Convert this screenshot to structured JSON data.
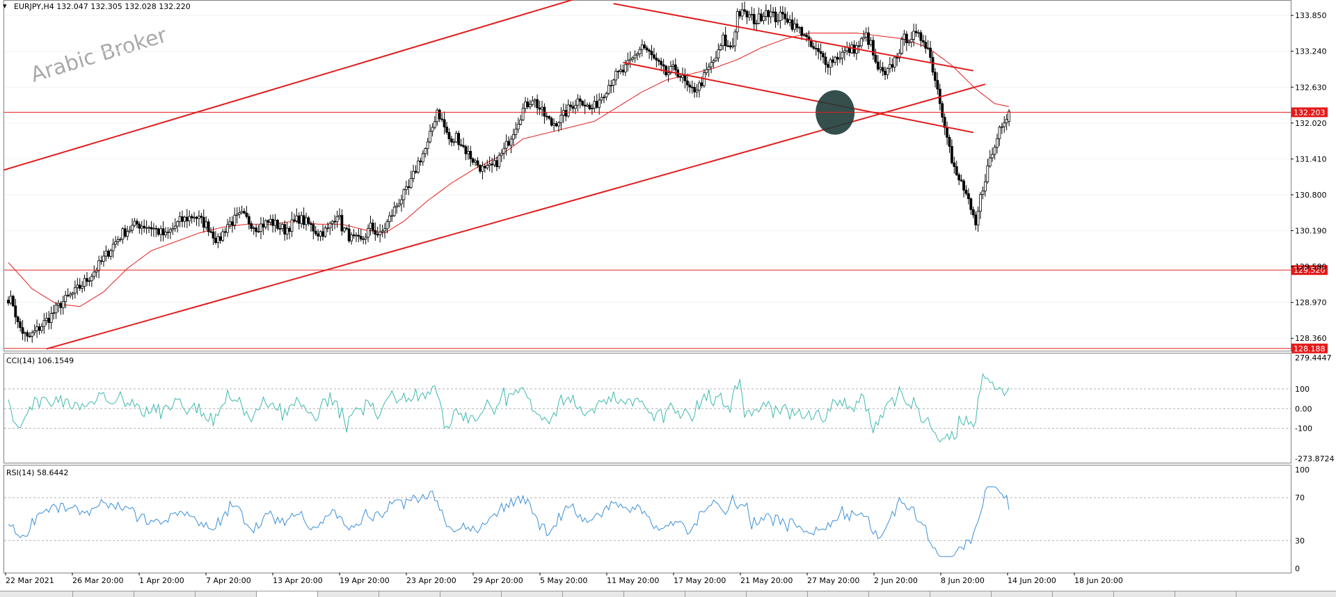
{
  "window": {
    "symbol_header": "EURJPY,H4  132.047 132.305 132.028 132.220",
    "watermark": "Arabic Broker"
  },
  "colors": {
    "bull": "#000000",
    "bear": "#000000",
    "ma": "#e31b1b",
    "trendline": "#e31b1b",
    "hline": "#e31b1b",
    "cci": "#3fb8af",
    "rsi": "#3b8fd9",
    "highlight": "#1f3c3a",
    "price_tag_bg": "#e31b1b",
    "price_tag_fg": "#ffffff"
  },
  "chart_data": [
    {
      "type": "candlestick",
      "title": "EURJPY,H4",
      "ohlc_current": {
        "open": 132.047,
        "high": 132.305,
        "low": 132.028,
        "close": 132.22
      },
      "y_ticks": [
        133.85,
        133.24,
        132.63,
        132.02,
        131.41,
        130.8,
        130.19,
        129.58,
        128.97,
        128.36
      ],
      "ylim": [
        128.15,
        134.1
      ],
      "x_ticks": [
        "22 Mar 2021",
        "26 Mar 20:00",
        "1 Apr 20:00",
        "7 Apr 20:00",
        "13 Apr 20:00",
        "19 Apr 20:00",
        "23 Apr 20:00",
        "29 Apr 20:00",
        "5 May 20:00",
        "11 May 20:00",
        "17 May 20:00",
        "21 May 20:00",
        "27 May 20:00",
        "2 Jun 20:00",
        "8 Jun 20:00",
        "14 Jun 20:00",
        "18 Jun 20:00"
      ],
      "price_levels": [
        {
          "name": "resistance",
          "value": "132.203",
          "y": 132.203
        },
        {
          "name": "support",
          "value": "129.520",
          "y": 129.52
        },
        {
          "name": "low",
          "value": "128.188",
          "y": 128.188
        }
      ],
      "close_path": [
        [
          0,
          129.05
        ],
        [
          2,
          128.95
        ],
        [
          4,
          128.6
        ],
        [
          8,
          128.35
        ],
        [
          12,
          128.5
        ],
        [
          18,
          128.75
        ],
        [
          22,
          128.95
        ],
        [
          28,
          129.15
        ],
        [
          34,
          129.4
        ],
        [
          38,
          129.6
        ],
        [
          44,
          129.95
        ],
        [
          48,
          130.15
        ],
        [
          54,
          130.3
        ],
        [
          60,
          130.25
        ],
        [
          66,
          130.1
        ],
        [
          72,
          130.35
        ],
        [
          78,
          130.45
        ],
        [
          84,
          130.25
        ],
        [
          88,
          130.0
        ],
        [
          92,
          130.3
        ],
        [
          98,
          130.45
        ],
        [
          104,
          130.25
        ],
        [
          110,
          130.35
        ],
        [
          116,
          130.2
        ],
        [
          122,
          130.4
        ],
        [
          126,
          130.3
        ],
        [
          130,
          130.15
        ],
        [
          134,
          130.2
        ],
        [
          138,
          130.5
        ],
        [
          140,
          130.25
        ],
        [
          144,
          130.05
        ],
        [
          148,
          130.0
        ],
        [
          152,
          130.25
        ],
        [
          156,
          130.1
        ],
        [
          160,
          130.4
        ],
        [
          164,
          130.7
        ],
        [
          168,
          130.9
        ],
        [
          172,
          131.35
        ],
        [
          176,
          131.65
        ],
        [
          178,
          131.95
        ],
        [
          180,
          132.25
        ],
        [
          182,
          132.05
        ],
        [
          186,
          131.65
        ],
        [
          188,
          131.8
        ],
        [
          192,
          131.55
        ],
        [
          196,
          131.35
        ],
        [
          200,
          131.2
        ],
        [
          204,
          131.3
        ],
        [
          208,
          131.55
        ],
        [
          212,
          131.9
        ],
        [
          216,
          132.25
        ],
        [
          220,
          132.45
        ],
        [
          224,
          132.2
        ],
        [
          228,
          132.0
        ],
        [
          232,
          132.1
        ],
        [
          236,
          132.3
        ],
        [
          240,
          132.45
        ],
        [
          244,
          132.25
        ],
        [
          246,
          132.3
        ],
        [
          250,
          132.55
        ],
        [
          254,
          132.8
        ],
        [
          258,
          132.9
        ],
        [
          262,
          133.1
        ],
        [
          266,
          133.35
        ],
        [
          268,
          133.25
        ],
        [
          272,
          133.05
        ],
        [
          276,
          132.85
        ],
        [
          280,
          132.95
        ],
        [
          284,
          132.7
        ],
        [
          286,
          132.55
        ],
        [
          290,
          132.65
        ],
        [
          294,
          132.95
        ],
        [
          298,
          133.2
        ],
        [
          300,
          133.45
        ],
        [
          302,
          133.3
        ],
        [
          304,
          133.35
        ],
        [
          306,
          133.9
        ],
        [
          310,
          133.85
        ],
        [
          314,
          133.75
        ],
        [
          318,
          133.95
        ],
        [
          322,
          133.8
        ],
        [
          326,
          133.85
        ],
        [
          330,
          133.65
        ],
        [
          334,
          133.55
        ],
        [
          336,
          133.35
        ],
        [
          340,
          133.2
        ],
        [
          344,
          133.05
        ],
        [
          348,
          133.15
        ],
        [
          352,
          133.25
        ],
        [
          356,
          133.3
        ],
        [
          360,
          133.5
        ],
        [
          362,
          133.35
        ],
        [
          364,
          133.0
        ],
        [
          368,
          132.8
        ],
        [
          372,
          133.1
        ],
        [
          376,
          133.45
        ],
        [
          380,
          133.5
        ],
        [
          384,
          133.45
        ],
        [
          386,
          133.3
        ],
        [
          388,
          132.95
        ],
        [
          390,
          132.6
        ],
        [
          392,
          132.2
        ],
        [
          394,
          131.85
        ],
        [
          396,
          131.35
        ],
        [
          398,
          131.1
        ],
        [
          400,
          131.0
        ],
        [
          402,
          130.8
        ],
        [
          404,
          130.5
        ],
        [
          406,
          130.25
        ],
        [
          408,
          130.75
        ],
        [
          410,
          131.1
        ],
        [
          412,
          131.4
        ],
        [
          414,
          131.6
        ],
        [
          416,
          131.95
        ],
        [
          418,
          132.1
        ],
        [
          420,
          132.22
        ]
      ],
      "ma_path": [
        [
          0,
          129.65
        ],
        [
          10,
          129.2
        ],
        [
          20,
          128.95
        ],
        [
          30,
          128.9
        ],
        [
          40,
          129.15
        ],
        [
          50,
          129.55
        ],
        [
          60,
          129.85
        ],
        [
          70,
          130.0
        ],
        [
          80,
          130.15
        ],
        [
          90,
          130.25
        ],
        [
          100,
          130.3
        ],
        [
          110,
          130.3
        ],
        [
          120,
          130.35
        ],
        [
          130,
          130.3
        ],
        [
          140,
          130.3
        ],
        [
          150,
          130.2
        ],
        [
          158,
          130.15
        ],
        [
          166,
          130.35
        ],
        [
          176,
          130.7
        ],
        [
          186,
          131.0
        ],
        [
          196,
          131.25
        ],
        [
          206,
          131.45
        ],
        [
          216,
          131.75
        ],
        [
          226,
          131.85
        ],
        [
          236,
          131.95
        ],
        [
          246,
          132.05
        ],
        [
          256,
          132.3
        ],
        [
          266,
          132.55
        ],
        [
          276,
          132.75
        ],
        [
          286,
          132.85
        ],
        [
          296,
          132.95
        ],
        [
          306,
          133.1
        ],
        [
          316,
          133.3
        ],
        [
          326,
          133.45
        ],
        [
          336,
          133.55
        ],
        [
          346,
          133.55
        ],
        [
          356,
          133.55
        ],
        [
          366,
          133.5
        ],
        [
          376,
          133.45
        ],
        [
          386,
          133.3
        ],
        [
          396,
          133.0
        ],
        [
          406,
          132.6
        ],
        [
          414,
          132.35
        ],
        [
          420,
          132.3
        ]
      ],
      "trendlines": [
        {
          "name": "upper-channel-line",
          "x1": -2,
          "y1": 131.22,
          "x2": 252,
          "y2": 134.3
        },
        {
          "name": "lower-channel-line",
          "x1": 16,
          "y1": 128.18,
          "x2": 410,
          "y2": 132.68
        },
        {
          "name": "descending-channel-top",
          "x1": 254,
          "y1": 134.05,
          "x2": 405,
          "y2": 132.91
        },
        {
          "name": "descending-channel-bottom",
          "x1": 258,
          "y1": 133.05,
          "x2": 405,
          "y2": 131.86
        }
      ],
      "highlight": {
        "x": 347,
        "y": 132.2
      }
    },
    {
      "type": "line",
      "title": "CCI(14) 106.1549",
      "y_ticks": [
        "279.4447",
        "100",
        "0.00",
        "-100",
        "-273.8724"
      ],
      "ylim": [
        -273.8724,
        279.4447
      ],
      "series": [
        {
          "name": "CCI(14)",
          "values": [
            106.1549
          ]
        }
      ]
    },
    {
      "type": "line",
      "title": "RSI(14) 58.6442",
      "y_ticks": [
        "100",
        "70",
        "30",
        "0"
      ],
      "ylim": [
        0,
        100
      ],
      "series": [
        {
          "name": "RSI(14)",
          "values": [
            58.6442
          ]
        }
      ]
    }
  ],
  "tabs": []
}
